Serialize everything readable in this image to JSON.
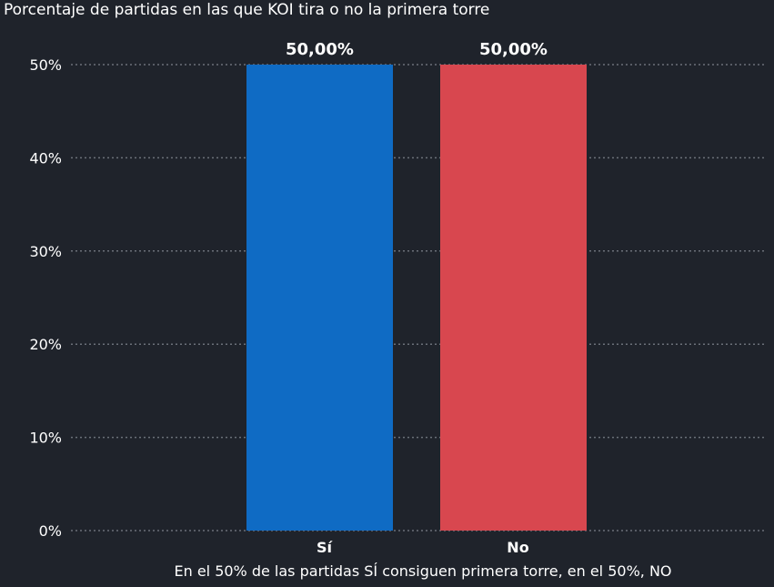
{
  "chart_data": {
    "type": "bar",
    "title": "Porcentaje de partidas en las que KOI tira o no la primera torre",
    "xlabel": "En el 50% de las partidas SÍ consiguen primera torre, en el 50%, NO",
    "ylabel": "",
    "categories": [
      "Sí",
      "No"
    ],
    "values": [
      50,
      50
    ],
    "data_labels": [
      "50,00%",
      "50,00%"
    ],
    "colors": [
      "#0f6bc4",
      "#d8474f"
    ],
    "ylim": [
      0,
      50
    ],
    "yticks": [
      0,
      10,
      20,
      30,
      40,
      50
    ],
    "ytick_labels": [
      "0%",
      "10%",
      "20%",
      "30%",
      "40%",
      "50%"
    ],
    "grid": true,
    "legend": "none"
  }
}
